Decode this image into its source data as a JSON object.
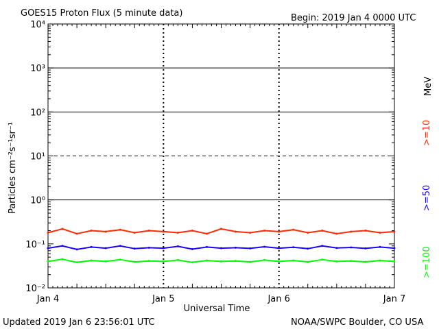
{
  "header": {
    "title": "GOES15 Proton Flux (5 minute data)",
    "begin": "Begin: 2019 Jan 4 0000 UTC"
  },
  "footer": {
    "updated": "Updated 2019 Jan  6 23:56:01 UTC",
    "credit": "NOAA/SWPC Boulder, CO USA"
  },
  "colors": {
    "ge10": "#ff2a00",
    "ge50": "#1a00ff",
    "ge100": "#00ff00",
    "background": "#ffffff",
    "axes": "#000000"
  },
  "chart_data": {
    "type": "line",
    "title": "GOES15 Proton Flux (5 minute data)",
    "xlabel": "Universal Time",
    "ylabel": "Particles cm⁻²s⁻¹sr⁻¹",
    "yscale": "log",
    "ylim": [
      0.01,
      10000
    ],
    "x_start": "2019-01-04T00:00",
    "x_end": "2019-01-07T00:00",
    "x_ticks": [
      "Jan 4",
      "Jan 5",
      "Jan 6",
      "Jan 7"
    ],
    "y_ticks": [
      "10⁻²",
      "10⁻¹",
      "10⁰",
      "10¹",
      "10²",
      "10³",
      "10⁴"
    ],
    "y_tick_values": [
      0.01,
      0.1,
      1,
      10,
      100,
      1000,
      10000
    ],
    "reference_lines": [
      {
        "value": 10,
        "style": "dashed"
      },
      {
        "value": 1,
        "style": "solid"
      },
      {
        "value": 100,
        "style": "solid"
      },
      {
        "value": 1000,
        "style": "solid"
      }
    ],
    "grid": "dashed vertical markers at day boundaries",
    "units_label": "MeV",
    "series": [
      {
        "name": ">=10",
        "color": "#ff2a00",
        "x": [
          "2019-01-04T00:00",
          "2019-01-04T03:00",
          "2019-01-04T06:00",
          "2019-01-04T09:00",
          "2019-01-04T12:00",
          "2019-01-04T15:00",
          "2019-01-04T18:00",
          "2019-01-04T21:00",
          "2019-01-05T00:00",
          "2019-01-05T03:00",
          "2019-01-05T06:00",
          "2019-01-05T09:00",
          "2019-01-05T12:00",
          "2019-01-05T15:00",
          "2019-01-05T18:00",
          "2019-01-05T21:00",
          "2019-01-06T00:00",
          "2019-01-06T03:00",
          "2019-01-06T06:00",
          "2019-01-06T09:00",
          "2019-01-06T12:00",
          "2019-01-06T15:00",
          "2019-01-06T18:00",
          "2019-01-06T21:00",
          "2019-01-07T00:00"
        ],
        "values": [
          0.18,
          0.22,
          0.17,
          0.2,
          0.19,
          0.21,
          0.18,
          0.2,
          0.19,
          0.18,
          0.2,
          0.17,
          0.22,
          0.19,
          0.18,
          0.2,
          0.19,
          0.21,
          0.18,
          0.2,
          0.17,
          0.19,
          0.2,
          0.18,
          0.19
        ]
      },
      {
        "name": ">=50",
        "color": "#1a00ff",
        "x": [
          "2019-01-04T00:00",
          "2019-01-04T03:00",
          "2019-01-04T06:00",
          "2019-01-04T09:00",
          "2019-01-04T12:00",
          "2019-01-04T15:00",
          "2019-01-04T18:00",
          "2019-01-04T21:00",
          "2019-01-05T00:00",
          "2019-01-05T03:00",
          "2019-01-05T06:00",
          "2019-01-05T09:00",
          "2019-01-05T12:00",
          "2019-01-05T15:00",
          "2019-01-05T18:00",
          "2019-01-05T21:00",
          "2019-01-06T00:00",
          "2019-01-06T03:00",
          "2019-01-06T06:00",
          "2019-01-06T09:00",
          "2019-01-06T12:00",
          "2019-01-06T15:00",
          "2019-01-06T18:00",
          "2019-01-06T21:00",
          "2019-01-07T00:00"
        ],
        "values": [
          0.08,
          0.09,
          0.075,
          0.085,
          0.08,
          0.09,
          0.078,
          0.082,
          0.08,
          0.088,
          0.076,
          0.085,
          0.08,
          0.082,
          0.079,
          0.086,
          0.08,
          0.084,
          0.078,
          0.09,
          0.081,
          0.083,
          0.079,
          0.085,
          0.08
        ]
      },
      {
        "name": ">=100",
        "color": "#00ff00",
        "x": [
          "2019-01-04T00:00",
          "2019-01-04T03:00",
          "2019-01-04T06:00",
          "2019-01-04T09:00",
          "2019-01-04T12:00",
          "2019-01-04T15:00",
          "2019-01-04T18:00",
          "2019-01-04T21:00",
          "2019-01-05T00:00",
          "2019-01-05T03:00",
          "2019-01-05T06:00",
          "2019-01-05T09:00",
          "2019-01-05T12:00",
          "2019-01-05T15:00",
          "2019-01-05T18:00",
          "2019-01-05T21:00",
          "2019-01-06T00:00",
          "2019-01-06T03:00",
          "2019-01-06T06:00",
          "2019-01-06T09:00",
          "2019-01-06T12:00",
          "2019-01-06T15:00",
          "2019-01-06T18:00",
          "2019-01-06T21:00",
          "2019-01-07T00:00"
        ],
        "values": [
          0.04,
          0.045,
          0.038,
          0.042,
          0.04,
          0.044,
          0.039,
          0.041,
          0.04,
          0.043,
          0.038,
          0.042,
          0.04,
          0.041,
          0.039,
          0.043,
          0.04,
          0.042,
          0.039,
          0.044,
          0.04,
          0.041,
          0.039,
          0.042,
          0.04
        ]
      }
    ]
  }
}
